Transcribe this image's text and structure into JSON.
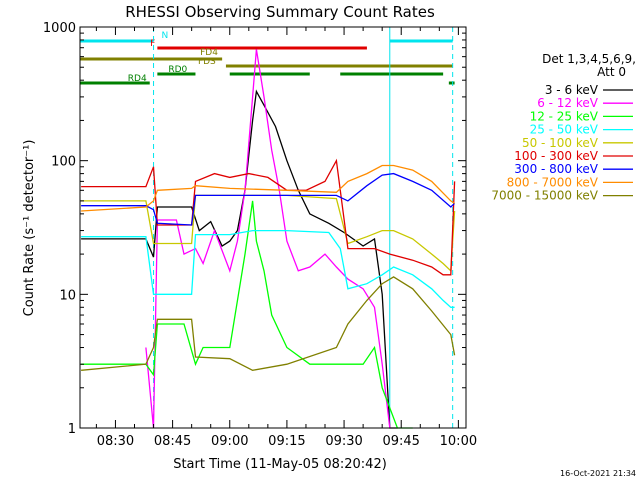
{
  "chart_data": {
    "type": "line",
    "title": "RHESSI Observing Summary Count Rates",
    "xlabel": "Start Time (11-May-05 08:20:42)",
    "ylabel": "Count Rate (s⁻¹ detector⁻¹)",
    "yscale": "log",
    "ylim": [
      1,
      1000
    ],
    "xlim": [
      "08:20:42",
      "10:02:00"
    ],
    "x_ticks": [
      "08:30",
      "08:45",
      "09:00",
      "09:15",
      "09:30",
      "09:45",
      "10:00"
    ],
    "y_ticks": [
      "1",
      "10",
      "100",
      "1000"
    ],
    "legend_header": [
      "Det 1,3,4,5,6,9,",
      "Att 0"
    ],
    "legend_position": "right",
    "timestamp": "16-Oct-2021 21:34",
    "flags": [
      {
        "label": "N",
        "color": "#00e5ee",
        "segments": [
          [
            "08:20:42",
            "08:40:00"
          ],
          [
            "09:42:00",
            "09:58:30"
          ]
        ]
      },
      {
        "label": "F",
        "color": "#e00000",
        "segments": [
          [
            "08:41:00",
            "09:36:00"
          ]
        ]
      },
      {
        "label": "FD4",
        "color": "#808000",
        "segments": [
          [
            "08:20:42",
            "08:58:00"
          ]
        ]
      },
      {
        "label": "FDS",
        "color": "#808000",
        "segments": [
          [
            "08:59:00",
            "09:58:30"
          ]
        ]
      },
      {
        "label": "RD0",
        "color": "#008000",
        "segments": [
          [
            "08:41:00",
            "08:51:00"
          ],
          [
            "09:00:00",
            "09:21:00"
          ],
          [
            "09:29:00",
            "09:56:00"
          ]
        ]
      },
      {
        "label": "RD4",
        "color": "#008000",
        "segments": [
          [
            "08:20:42",
            "08:39:00"
          ],
          [
            "09:57:30",
            "09:59:00"
          ]
        ]
      }
    ],
    "vlines": [
      {
        "time": "08:20:42",
        "style": "solid",
        "color": "#00e5ee"
      },
      {
        "time": "08:40:00",
        "style": "dashed",
        "color": "#00e5ee"
      },
      {
        "time": "09:42:00",
        "style": "solid",
        "color": "#00e5ee"
      },
      {
        "time": "09:58:30",
        "style": "dashed",
        "color": "#00e5ee"
      }
    ],
    "series": [
      {
        "name": "3 - 6 keV",
        "color": "#000000",
        "points": [
          [
            "08:21",
            "26"
          ],
          [
            "08:38",
            "26"
          ],
          [
            "08:40",
            "19"
          ],
          [
            "08:41",
            "45"
          ],
          [
            "08:50",
            "45"
          ],
          [
            "08:52",
            "30"
          ],
          [
            "08:55",
            "35"
          ],
          [
            "08:58",
            "23"
          ],
          [
            "09:00",
            "25"
          ],
          [
            "09:02",
            "30"
          ],
          [
            "09:04",
            "60"
          ],
          [
            "09:06",
            "200"
          ],
          [
            "09:07",
            "330"
          ],
          [
            "09:09",
            "260"
          ],
          [
            "09:12",
            "180"
          ],
          [
            "09:15",
            "100"
          ],
          [
            "09:18",
            "60"
          ],
          [
            "09:21",
            "40"
          ],
          [
            "09:26",
            "34"
          ],
          [
            "09:30",
            "29"
          ],
          [
            "09:35",
            "23"
          ],
          [
            "09:38",
            "26"
          ],
          [
            "09:40",
            "10"
          ],
          [
            "09:42",
            "1"
          ],
          [
            "09:44",
            "1"
          ]
        ]
      },
      {
        "name": "6 - 12 keV",
        "color": "#ff00ff",
        "points": [
          [
            "08:38",
            "4"
          ],
          [
            "08:40",
            "1"
          ],
          [
            "08:41",
            "36"
          ],
          [
            "08:46",
            "36"
          ],
          [
            "08:48",
            "20"
          ],
          [
            "08:51",
            "22"
          ],
          [
            "08:53",
            "17"
          ],
          [
            "08:56",
            "30"
          ],
          [
            "09:00",
            "15"
          ],
          [
            "09:02",
            "25"
          ],
          [
            "09:04",
            "60"
          ],
          [
            "09:06",
            "300"
          ],
          [
            "09:07",
            "680"
          ],
          [
            "09:09",
            "300"
          ],
          [
            "09:11",
            "120"
          ],
          [
            "09:13",
            "60"
          ],
          [
            "09:15",
            "25"
          ],
          [
            "09:18",
            "15"
          ],
          [
            "09:21",
            "16"
          ],
          [
            "09:25",
            "20"
          ],
          [
            "09:28",
            "16"
          ],
          [
            "09:31",
            "13"
          ],
          [
            "09:35",
            "11"
          ],
          [
            "09:38",
            "8"
          ],
          [
            "09:40",
            "3"
          ],
          [
            "09:42",
            "1"
          ]
        ]
      },
      {
        "name": "12 - 25 keV",
        "color": "#00ff00",
        "points": [
          [
            "08:21",
            "3"
          ],
          [
            "08:38",
            "3"
          ],
          [
            "08:40",
            "2.5"
          ],
          [
            "08:41",
            "6"
          ],
          [
            "08:48",
            "6"
          ],
          [
            "08:51",
            "3"
          ],
          [
            "08:53",
            "4"
          ],
          [
            "09:00",
            "4"
          ],
          [
            "09:04",
            "20"
          ],
          [
            "09:06",
            "50"
          ],
          [
            "09:07",
            "25"
          ],
          [
            "09:09",
            "15"
          ],
          [
            "09:11",
            "7"
          ],
          [
            "09:15",
            "4"
          ],
          [
            "09:21",
            "3"
          ],
          [
            "09:28",
            "3"
          ],
          [
            "09:31",
            "3"
          ],
          [
            "09:35",
            "3"
          ],
          [
            "09:38",
            "4"
          ],
          [
            "09:40",
            "2"
          ],
          [
            "09:44",
            "1"
          ],
          [
            "09:48",
            "1"
          ]
        ]
      },
      {
        "name": "25 - 50 keV",
        "color": "#00ffff",
        "points": [
          [
            "08:21",
            "27"
          ],
          [
            "08:38",
            "27"
          ],
          [
            "08:40",
            "10"
          ],
          [
            "08:41",
            "10"
          ],
          [
            "08:50",
            "10"
          ],
          [
            "08:51",
            "28"
          ],
          [
            "08:56",
            "28"
          ],
          [
            "09:00",
            "28"
          ],
          [
            "09:06",
            "30"
          ],
          [
            "09:15",
            "30"
          ],
          [
            "09:26",
            "29"
          ],
          [
            "09:29",
            "22"
          ],
          [
            "09:31",
            "11"
          ],
          [
            "09:36",
            "12"
          ],
          [
            "09:40",
            "14"
          ],
          [
            "09:43",
            "16"
          ],
          [
            "09:48",
            "14"
          ],
          [
            "09:53",
            "11"
          ],
          [
            "09:56",
            "9"
          ],
          [
            "09:58",
            "8"
          ],
          [
            "09:59",
            "8"
          ]
        ]
      },
      {
        "name": "50 - 100 keV",
        "color": "#c8c800",
        "points": [
          [
            "08:21",
            "50"
          ],
          [
            "08:38",
            "50"
          ],
          [
            "08:40",
            "24"
          ],
          [
            "08:41",
            "24"
          ],
          [
            "08:50",
            "24"
          ],
          [
            "08:51",
            "55"
          ],
          [
            "09:00",
            "55"
          ],
          [
            "09:15",
            "55"
          ],
          [
            "09:28",
            "52"
          ],
          [
            "09:31",
            "24"
          ],
          [
            "09:36",
            "27"
          ],
          [
            "09:40",
            "30"
          ],
          [
            "09:43",
            "30"
          ],
          [
            "09:48",
            "26"
          ],
          [
            "09:53",
            "20"
          ],
          [
            "09:56",
            "17"
          ],
          [
            "09:58",
            "15"
          ],
          [
            "09:59",
            "42"
          ]
        ]
      },
      {
        "name": "100 - 300 keV",
        "color": "#e00000",
        "points": [
          [
            "08:21",
            "64"
          ],
          [
            "08:38",
            "64"
          ],
          [
            "08:40",
            "90"
          ],
          [
            "08:41",
            "33"
          ],
          [
            "08:50",
            "33"
          ],
          [
            "08:51",
            "70"
          ],
          [
            "08:56",
            "80"
          ],
          [
            "09:00",
            "75"
          ],
          [
            "09:05",
            "80"
          ],
          [
            "09:10",
            "75"
          ],
          [
            "09:15",
            "60"
          ],
          [
            "09:20",
            "60"
          ],
          [
            "09:25",
            "70"
          ],
          [
            "09:28",
            "100"
          ],
          [
            "09:31",
            "22"
          ],
          [
            "09:38",
            "22"
          ],
          [
            "09:42",
            "20"
          ],
          [
            "09:48",
            "18"
          ],
          [
            "09:53",
            "16"
          ],
          [
            "09:56",
            "14"
          ],
          [
            "09:58",
            "14"
          ],
          [
            "09:59",
            "70"
          ]
        ]
      },
      {
        "name": "300 - 800 keV",
        "color": "#0000ff",
        "points": [
          [
            "08:21",
            "46"
          ],
          [
            "08:38",
            "46"
          ],
          [
            "08:40",
            "43"
          ],
          [
            "08:41",
            "34"
          ],
          [
            "08:50",
            "33"
          ],
          [
            "08:51",
            "55"
          ],
          [
            "09:00",
            "55"
          ],
          [
            "09:15",
            "55"
          ],
          [
            "09:28",
            "55"
          ],
          [
            "09:31",
            "50"
          ],
          [
            "09:36",
            "65"
          ],
          [
            "09:40",
            "78"
          ],
          [
            "09:43",
            "80"
          ],
          [
            "09:48",
            "70"
          ],
          [
            "09:53",
            "60"
          ],
          [
            "09:58",
            "45"
          ],
          [
            "09:59",
            "48"
          ]
        ]
      },
      {
        "name": "800 - 7000 keV",
        "color": "#ff8c00",
        "points": [
          [
            "08:21",
            "42"
          ],
          [
            "08:38",
            "45"
          ],
          [
            "08:40",
            "50"
          ],
          [
            "08:41",
            "60"
          ],
          [
            "08:50",
            "62"
          ],
          [
            "08:51",
            "65"
          ],
          [
            "09:00",
            "62"
          ],
          [
            "09:15",
            "60"
          ],
          [
            "09:28",
            "58"
          ],
          [
            "09:31",
            "70"
          ],
          [
            "09:36",
            "80"
          ],
          [
            "09:40",
            "92"
          ],
          [
            "09:43",
            "92"
          ],
          [
            "09:48",
            "85"
          ],
          [
            "09:53",
            "70"
          ],
          [
            "09:58",
            "50"
          ],
          [
            "09:59",
            "48"
          ]
        ]
      },
      {
        "name": "7000 - 15000 keV",
        "color": "#808000",
        "points": [
          [
            "08:21",
            "2.7"
          ],
          [
            "08:38",
            "3"
          ],
          [
            "08:40",
            "4"
          ],
          [
            "08:41",
            "6.5"
          ],
          [
            "08:50",
            "6.5"
          ],
          [
            "08:51",
            "3.4"
          ],
          [
            "09:00",
            "3.3"
          ],
          [
            "09:06",
            "2.7"
          ],
          [
            "09:15",
            "3"
          ],
          [
            "09:28",
            "4"
          ],
          [
            "09:31",
            "6"
          ],
          [
            "09:36",
            "9"
          ],
          [
            "09:40",
            "12"
          ],
          [
            "09:43",
            "13.5"
          ],
          [
            "09:48",
            "11"
          ],
          [
            "09:53",
            "7.5"
          ],
          [
            "09:58",
            "5"
          ],
          [
            "09:59",
            "3.5"
          ]
        ]
      }
    ]
  }
}
